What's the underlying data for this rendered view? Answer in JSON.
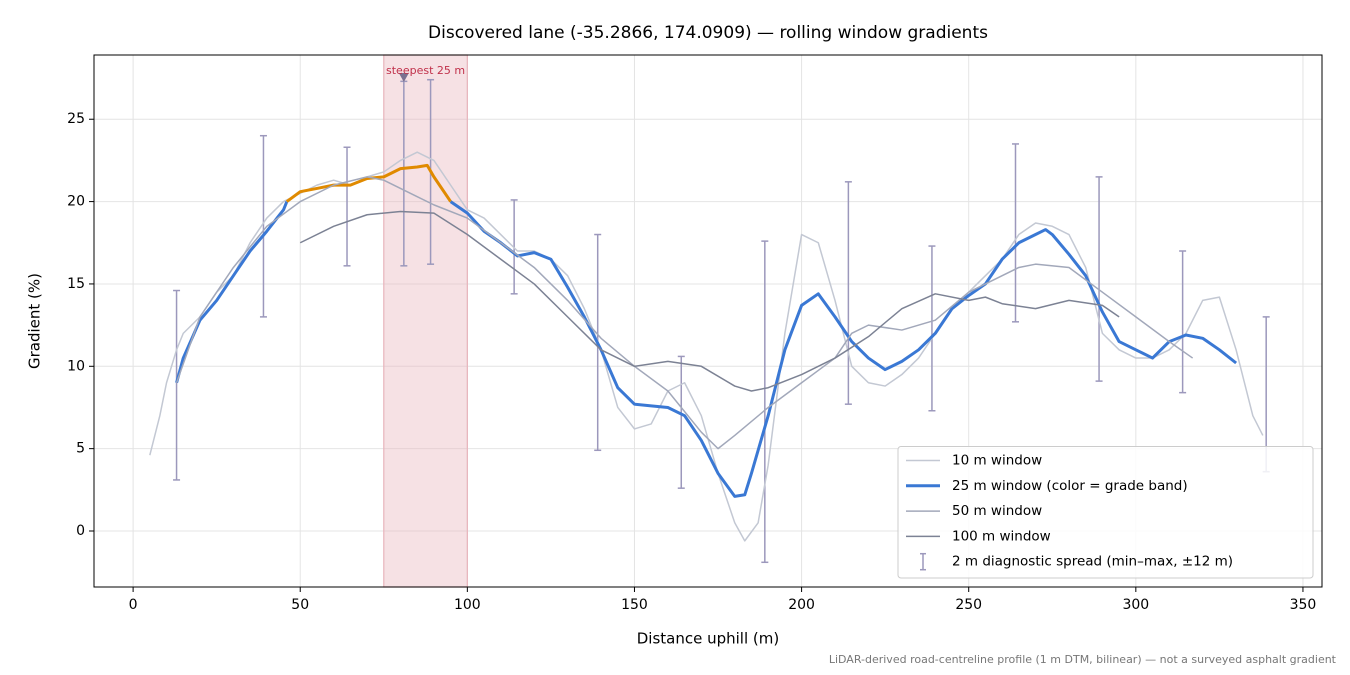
{
  "chart_data": {
    "type": "line",
    "title": "Discovered lane (-35.2866, 174.0909) — rolling window gradients",
    "xlabel": "Distance uphill (m)",
    "ylabel": "Gradient (%)",
    "footnote": "LiDAR-derived road-centreline profile (1 m DTM, bilinear) — not a surveyed asphalt gradient",
    "xlim": [
      -11.7,
      355.7
    ],
    "ylim": [
      -3.4,
      28.9
    ],
    "xticks": [
      0,
      50,
      100,
      150,
      200,
      250,
      300,
      350
    ],
    "yticks": [
      0,
      5,
      10,
      15,
      20,
      25
    ],
    "grid": true,
    "legend": "lower right",
    "highlight": {
      "x0": 75,
      "x1": 100,
      "label": "steepest 25 m",
      "marker_x": 81,
      "marker_y": 27.5,
      "color": "#e8b4bc",
      "label_color": "#c0304a",
      "marker_color": "#7a7090"
    },
    "series": [
      {
        "name": "10 m window",
        "color": "#c3c8d3",
        "width": 1.5,
        "x": [
          5,
          8,
          10,
          13,
          15,
          20,
          25,
          30,
          35,
          40,
          45,
          50,
          55,
          60,
          65,
          70,
          75,
          80,
          85,
          90,
          95,
          100,
          105,
          110,
          115,
          120,
          125,
          130,
          135,
          140,
          145,
          150,
          155,
          160,
          165,
          170,
          175,
          180,
          183,
          187,
          190,
          195,
          200,
          205,
          210,
          215,
          220,
          225,
          230,
          235,
          240,
          245,
          250,
          255,
          260,
          265,
          270,
          275,
          280,
          285,
          290,
          295,
          300,
          305,
          310,
          315,
          320,
          325,
          330,
          335,
          338
        ],
        "values": [
          4.6,
          7,
          9,
          11,
          12,
          13,
          14.5,
          15.5,
          17.5,
          19,
          20,
          20.5,
          21,
          21.3,
          21,
          21.5,
          21.8,
          22.5,
          23,
          22.5,
          21,
          19.5,
          19,
          18,
          17,
          17,
          16.5,
          15.5,
          13.5,
          11,
          7.5,
          6.2,
          6.5,
          8.5,
          9,
          7,
          3.5,
          0.5,
          -0.6,
          0.5,
          4,
          12,
          18,
          17.5,
          14,
          10,
          9,
          8.8,
          9.5,
          10.5,
          12,
          13.5,
          14.5,
          15.5,
          16.5,
          18,
          18.7,
          18.5,
          18,
          16,
          12,
          11,
          10.5,
          10.5,
          11,
          12,
          14,
          14.2,
          11,
          7,
          5.8
        ]
      },
      {
        "name": "25 m window (color = grade band)",
        "color": "#3a78d4",
        "width": 3,
        "band_threshold": 20,
        "band_color": "#e08a00",
        "x": [
          13,
          15,
          20,
          25,
          30,
          35,
          40,
          45,
          46,
          50,
          55,
          60,
          65,
          70,
          75,
          80,
          85,
          88,
          90,
          95,
          100,
          105,
          110,
          115,
          120,
          125,
          130,
          135,
          140,
          145,
          150,
          155,
          160,
          165,
          170,
          175,
          180,
          183,
          185,
          190,
          195,
          200,
          205,
          210,
          215,
          220,
          225,
          230,
          235,
          240,
          245,
          250,
          255,
          260,
          265,
          270,
          273,
          275,
          280,
          285,
          290,
          295,
          300,
          305,
          310,
          315,
          320,
          325,
          330
        ],
        "values": [
          9,
          10.5,
          12.8,
          14,
          15.5,
          17,
          18.2,
          19.5,
          20,
          20.6,
          20.8,
          21,
          21,
          21.4,
          21.5,
          22,
          22.1,
          22.2,
          21.5,
          20,
          19.3,
          18.2,
          17.5,
          16.7,
          16.9,
          16.5,
          14.8,
          13,
          11,
          8.7,
          7.7,
          7.6,
          7.5,
          7,
          5.5,
          3.5,
          2.1,
          2.2,
          3.5,
          7,
          11,
          13.7,
          14.4,
          13,
          11.5,
          10.5,
          9.8,
          10.3,
          11,
          12,
          13.5,
          14.3,
          15,
          16.5,
          17.5,
          18,
          18.3,
          18,
          16.8,
          15.5,
          13.3,
          11.5,
          11,
          10.5,
          11.5,
          11.9,
          11.7,
          11,
          10.2
        ]
      },
      {
        "name": "50 m window",
        "color": "#a2a8ba",
        "width": 1.5,
        "x": [
          13,
          20,
          30,
          40,
          50,
          60,
          70,
          75,
          80,
          85,
          90,
          100,
          110,
          120,
          130,
          140,
          150,
          160,
          170,
          175,
          180,
          190,
          200,
          210,
          215,
          220,
          230,
          240,
          250,
          260,
          265,
          270,
          280,
          290,
          300,
          310,
          317
        ],
        "values": [
          9,
          13,
          16,
          18.5,
          20,
          21,
          21.5,
          21.3,
          20.8,
          20.3,
          19.8,
          19,
          17.5,
          16,
          14,
          11.7,
          10,
          8.5,
          6,
          5,
          5.8,
          7.5,
          9,
          10.5,
          12,
          12.5,
          12.2,
          12.8,
          14.5,
          15.5,
          16,
          16.2,
          16,
          14.5,
          13,
          11.5,
          10.5
        ]
      },
      {
        "name": "100 m window",
        "color": "#7c8294",
        "width": 1.5,
        "x": [
          50,
          60,
          70,
          80,
          90,
          100,
          110,
          120,
          130,
          140,
          150,
          160,
          170,
          180,
          185,
          190,
          200,
          210,
          220,
          230,
          240,
          250,
          255,
          260,
          270,
          280,
          290,
          295
        ],
        "values": [
          17.5,
          18.5,
          19.2,
          19.4,
          19.3,
          18,
          16.5,
          15,
          13,
          11,
          10,
          10.3,
          10,
          8.8,
          8.5,
          8.7,
          9.5,
          10.5,
          11.8,
          13.5,
          14.4,
          14,
          14.2,
          13.8,
          13.5,
          14,
          13.7,
          13
        ]
      }
    ],
    "errorbars": {
      "name": "2 m diagnostic spread (min–max, ±12 m)",
      "color": "#9c98bc",
      "x": [
        13,
        39,
        64,
        81,
        89,
        114,
        139,
        164,
        189,
        214,
        239,
        264,
        289,
        314,
        339
      ],
      "low": [
        3.1,
        13,
        16.1,
        16.1,
        16.2,
        14.4,
        4.9,
        2.6,
        -1.9,
        7.7,
        7.3,
        12.7,
        9.1,
        8.4,
        3.6
      ],
      "high": [
        14.6,
        24,
        23.3,
        27.3,
        27.4,
        20.1,
        18,
        10.6,
        17.6,
        21.2,
        17.3,
        23.5,
        21.5,
        17,
        13
      ]
    }
  }
}
